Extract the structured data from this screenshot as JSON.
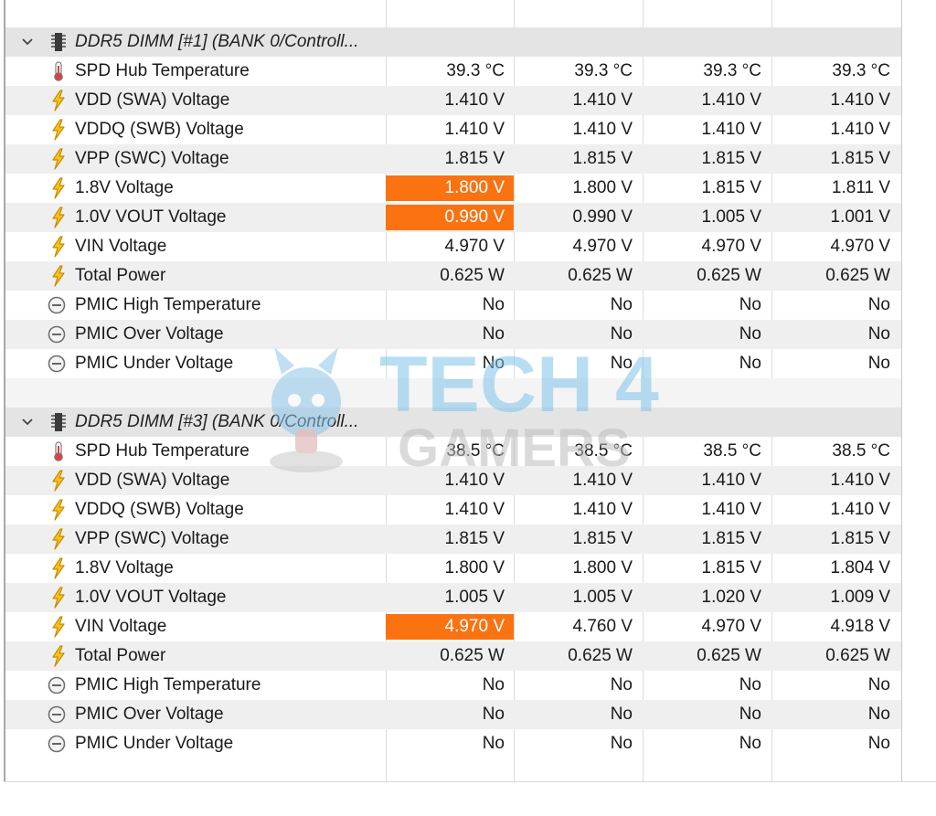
{
  "colors": {
    "highlight": "#fb7211",
    "row_alt": "#efefef",
    "group_row": "#e4e4e4",
    "bolt": "#f2b400",
    "watermark": "#7fc4ea"
  },
  "icons": {
    "temperature": "thermometer-icon",
    "voltage": "lightning-bolt-icon",
    "boolean": "clock-status-icon",
    "group": "memory-chip-icon",
    "expand": "chevron-down-icon"
  },
  "groups": [
    {
      "title": "DDR5 DIMM [#1] (BANK 0/Controll...",
      "rows": [
        {
          "name": "SPD Hub Temperature",
          "kind": "temp",
          "values": [
            "39.3 °C",
            "39.3 °C",
            "39.3 °C",
            "39.3 °C"
          ],
          "highlight": false
        },
        {
          "name": "VDD (SWA) Voltage",
          "kind": "volt",
          "values": [
            "1.410 V",
            "1.410 V",
            "1.410 V",
            "1.410 V"
          ],
          "highlight": false
        },
        {
          "name": "VDDQ (SWB) Voltage",
          "kind": "volt",
          "values": [
            "1.410 V",
            "1.410 V",
            "1.410 V",
            "1.410 V"
          ],
          "highlight": false
        },
        {
          "name": "VPP (SWC) Voltage",
          "kind": "volt",
          "values": [
            "1.815 V",
            "1.815 V",
            "1.815 V",
            "1.815 V"
          ],
          "highlight": false
        },
        {
          "name": "1.8V Voltage",
          "kind": "volt",
          "values": [
            "1.800 V",
            "1.800 V",
            "1.815 V",
            "1.811 V"
          ],
          "highlight": true
        },
        {
          "name": "1.0V VOUT Voltage",
          "kind": "volt",
          "values": [
            "0.990 V",
            "0.990 V",
            "1.005 V",
            "1.001 V"
          ],
          "highlight": true
        },
        {
          "name": "VIN Voltage",
          "kind": "volt",
          "values": [
            "4.970 V",
            "4.970 V",
            "4.970 V",
            "4.970 V"
          ],
          "highlight": false
        },
        {
          "name": "Total Power",
          "kind": "volt",
          "values": [
            "0.625 W",
            "0.625 W",
            "0.625 W",
            "0.625 W"
          ],
          "highlight": false
        },
        {
          "name": "PMIC High Temperature",
          "kind": "bool",
          "values": [
            "No",
            "No",
            "No",
            "No"
          ],
          "highlight": false
        },
        {
          "name": "PMIC Over Voltage",
          "kind": "bool",
          "values": [
            "No",
            "No",
            "No",
            "No"
          ],
          "highlight": false
        },
        {
          "name": "PMIC Under Voltage",
          "kind": "bool",
          "values": [
            "No",
            "No",
            "No",
            "No"
          ],
          "highlight": false
        }
      ]
    },
    {
      "title": "DDR5 DIMM [#3] (BANK 0/Controll...",
      "rows": [
        {
          "name": "SPD Hub Temperature",
          "kind": "temp",
          "values": [
            "38.5 °C",
            "38.5 °C",
            "38.5 °C",
            "38.5 °C"
          ],
          "highlight": false
        },
        {
          "name": "VDD (SWA) Voltage",
          "kind": "volt",
          "values": [
            "1.410 V",
            "1.410 V",
            "1.410 V",
            "1.410 V"
          ],
          "highlight": false
        },
        {
          "name": "VDDQ (SWB) Voltage",
          "kind": "volt",
          "values": [
            "1.410 V",
            "1.410 V",
            "1.410 V",
            "1.410 V"
          ],
          "highlight": false
        },
        {
          "name": "VPP (SWC) Voltage",
          "kind": "volt",
          "values": [
            "1.815 V",
            "1.815 V",
            "1.815 V",
            "1.815 V"
          ],
          "highlight": false
        },
        {
          "name": "1.8V Voltage",
          "kind": "volt",
          "values": [
            "1.800 V",
            "1.800 V",
            "1.815 V",
            "1.804 V"
          ],
          "highlight": false
        },
        {
          "name": "1.0V VOUT Voltage",
          "kind": "volt",
          "values": [
            "1.005 V",
            "1.005 V",
            "1.020 V",
            "1.009 V"
          ],
          "highlight": false
        },
        {
          "name": "VIN Voltage",
          "kind": "volt",
          "values": [
            "4.970 V",
            "4.760 V",
            "4.970 V",
            "4.918 V"
          ],
          "highlight": true
        },
        {
          "name": "Total Power",
          "kind": "volt",
          "values": [
            "0.625 W",
            "0.625 W",
            "0.625 W",
            "0.625 W"
          ],
          "highlight": false
        },
        {
          "name": "PMIC High Temperature",
          "kind": "bool",
          "values": [
            "No",
            "No",
            "No",
            "No"
          ],
          "highlight": false
        },
        {
          "name": "PMIC Over Voltage",
          "kind": "bool",
          "values": [
            "No",
            "No",
            "No",
            "No"
          ],
          "highlight": false
        },
        {
          "name": "PMIC Under Voltage",
          "kind": "bool",
          "values": [
            "No",
            "No",
            "No",
            "No"
          ],
          "highlight": false
        }
      ]
    }
  ],
  "watermark": {
    "line1": "TECH 4",
    "line2": "GAMERS"
  }
}
